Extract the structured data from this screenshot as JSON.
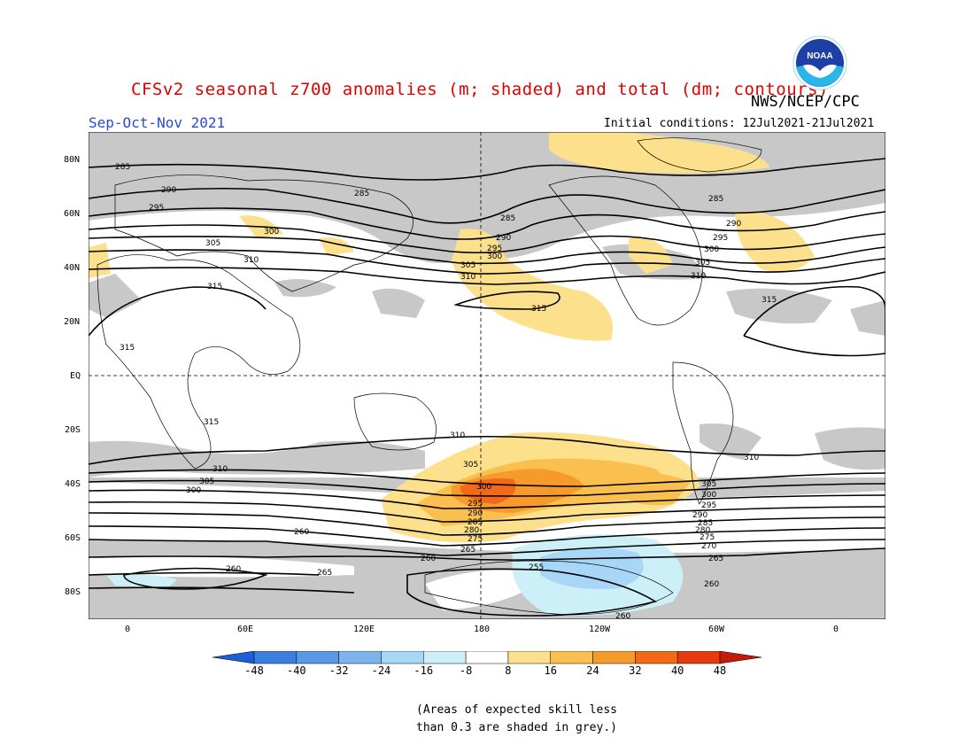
{
  "header": {
    "title": "CFSv2 seasonal z700 anomalies (m; shaded) and total (dm; contours)",
    "agency": "NWS/NCEP/CPC",
    "season": "Sep-Oct-Nov 2021",
    "initial_conditions": "Initial conditions: 12Jul2021-21Jul2021",
    "logo_text": "NOAA"
  },
  "axes": {
    "latitude_labels": [
      "80N",
      "60N",
      "40N",
      "20N",
      "EQ",
      "20S",
      "40S",
      "60S",
      "80S"
    ],
    "longitude_labels": [
      "0",
      "60E",
      "120E",
      "180",
      "120W",
      "60W",
      "0"
    ]
  },
  "contour_labels": [
    "285",
    "290",
    "295",
    "300",
    "305",
    "310",
    "315",
    "260",
    "265",
    "270",
    "275",
    "280",
    "255"
  ],
  "colorbar": {
    "ticks": [
      "-48",
      "-40",
      "-32",
      "-24",
      "-16",
      "-8",
      "8",
      "16",
      "24",
      "32",
      "40",
      "48"
    ],
    "colors": [
      "#1a5fd6",
      "#3a7fe0",
      "#5898e6",
      "#7cb4ee",
      "#a8d6f6",
      "#cdf0f8",
      "#ffffff",
      "#fde08c",
      "#fbbf4f",
      "#f79a2c",
      "#f26a18",
      "#e83a10",
      "#c41a0a"
    ]
  },
  "colors": {
    "skill_grey": "#c8c8c8",
    "title_red": "#e00000",
    "season_blue": "#2a4cc8"
  },
  "note": {
    "line1": "(Areas of expected skill less",
    "line2": "than 0.3 are shaded in grey.)"
  }
}
